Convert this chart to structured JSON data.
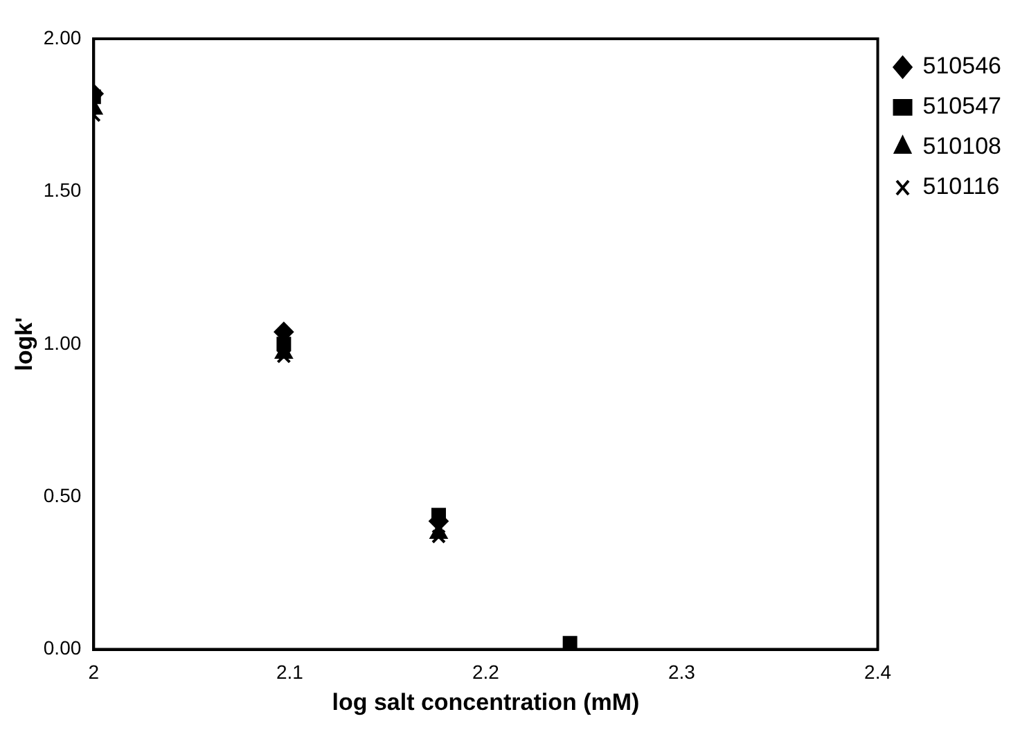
{
  "chart_data": {
    "type": "scatter",
    "xlabel": "log salt concentration (mM)",
    "ylabel": "logk'",
    "x": [
      2,
      2.097,
      2.176,
      2.243
    ],
    "series": [
      {
        "name": "510546",
        "color": "#000000",
        "marker": "diamond",
        "values": [
          1.82,
          1.04,
          0.42,
          null
        ]
      },
      {
        "name": "510547",
        "color": "#000000",
        "marker": "square",
        "values": [
          1.81,
          1.0,
          0.44,
          0.02
        ]
      },
      {
        "name": "510108",
        "color": "#000000",
        "marker": "triangle",
        "values": [
          1.77,
          0.97,
          0.38,
          null
        ]
      },
      {
        "name": "510116",
        "color": "#000000",
        "marker": "cross",
        "values": [
          1.75,
          0.96,
          0.37,
          null
        ]
      }
    ],
    "xlim": [
      2,
      2.4
    ],
    "xticks": [
      2,
      2.1,
      2.2,
      2.3,
      2.4
    ],
    "ylim": [
      0,
      2
    ],
    "yticks": [
      {
        "value": 0,
        "label": "0.00"
      },
      {
        "value": 0.5,
        "label": "0.50"
      },
      {
        "value": 1,
        "label": "1.00"
      },
      {
        "value": 1.5,
        "label": "1.50"
      },
      {
        "value": 2,
        "label": "2.00"
      }
    ],
    "grid": false,
    "legend": "top right"
  }
}
